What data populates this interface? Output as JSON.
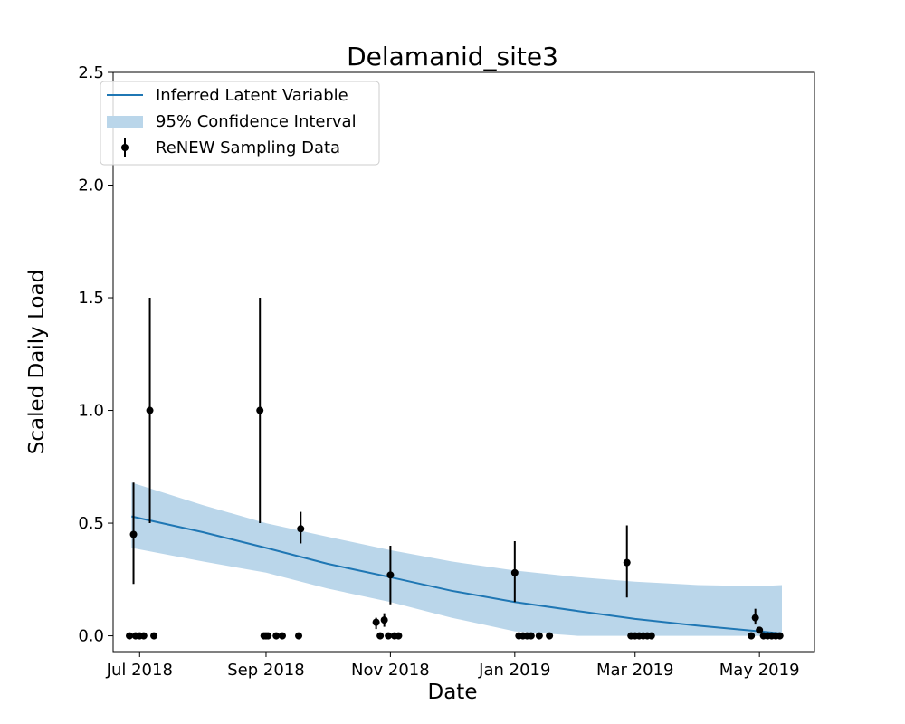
{
  "chart_data": {
    "type": "line",
    "title": "Delamanid_site3",
    "xlabel": "Date",
    "ylabel": "Scaled Daily Load",
    "xlim": [
      "2018-06-18",
      "2019-05-28"
    ],
    "ylim": [
      -0.07,
      2.5
    ],
    "x_ticks": [
      {
        "date": "2018-07-01",
        "label": "Jul 2018"
      },
      {
        "date": "2018-09-01",
        "label": "Sep 2018"
      },
      {
        "date": "2018-11-01",
        "label": "Nov 2018"
      },
      {
        "date": "2019-01-01",
        "label": "Jan 2019"
      },
      {
        "date": "2019-03-01",
        "label": "Mar 2019"
      },
      {
        "date": "2019-05-01",
        "label": "May 2019"
      }
    ],
    "y_ticks": [
      {
        "value": 0.0,
        "label": "0.0"
      },
      {
        "value": 0.5,
        "label": "0.5"
      },
      {
        "value": 1.0,
        "label": "1.0"
      },
      {
        "value": 1.5,
        "label": "1.5"
      },
      {
        "value": 2.0,
        "label": "2.0"
      },
      {
        "value": 2.5,
        "label": "2.5"
      }
    ],
    "grid": false,
    "legend_position": "top-left",
    "legend": {
      "latent": "Inferred Latent Variable",
      "ci": "95% Confidence Interval",
      "data": "ReNEW Sampling Data"
    },
    "colors": {
      "latent": "#1f77b4",
      "ci": "#bad6ea",
      "data": "#000000"
    },
    "series": [
      {
        "name": "Inferred Latent Variable",
        "kind": "line",
        "points": [
          {
            "x": "2018-06-27",
            "y": 0.53
          },
          {
            "x": "2018-08-01",
            "y": 0.46
          },
          {
            "x": "2018-09-01",
            "y": 0.39
          },
          {
            "x": "2018-10-01",
            "y": 0.32
          },
          {
            "x": "2018-11-01",
            "y": 0.26
          },
          {
            "x": "2018-12-01",
            "y": 0.2
          },
          {
            "x": "2019-01-01",
            "y": 0.15
          },
          {
            "x": "2019-02-01",
            "y": 0.11
          },
          {
            "x": "2019-03-01",
            "y": 0.075
          },
          {
            "x": "2019-04-01",
            "y": 0.045
          },
          {
            "x": "2019-05-01",
            "y": 0.02
          },
          {
            "x": "2019-05-12",
            "y": 0.01
          }
        ]
      },
      {
        "name": "95% Confidence Interval",
        "kind": "band",
        "points": [
          {
            "x": "2018-06-27",
            "low": 0.39,
            "high": 0.68
          },
          {
            "x": "2018-08-01",
            "low": 0.33,
            "high": 0.58
          },
          {
            "x": "2018-09-01",
            "low": 0.28,
            "high": 0.5
          },
          {
            "x": "2018-10-01",
            "low": 0.21,
            "high": 0.44
          },
          {
            "x": "2018-11-01",
            "low": 0.15,
            "high": 0.38
          },
          {
            "x": "2018-12-01",
            "low": 0.08,
            "high": 0.33
          },
          {
            "x": "2019-01-01",
            "low": 0.02,
            "high": 0.29
          },
          {
            "x": "2019-02-01",
            "low": 0.0,
            "high": 0.26
          },
          {
            "x": "2019-03-01",
            "low": 0.0,
            "high": 0.24
          },
          {
            "x": "2019-04-01",
            "low": 0.0,
            "high": 0.225
          },
          {
            "x": "2019-05-01",
            "low": 0.0,
            "high": 0.22
          },
          {
            "x": "2019-05-12",
            "low": 0.0,
            "high": 0.225
          }
        ]
      },
      {
        "name": "ReNEW Sampling Data",
        "kind": "errorbar",
        "points": [
          {
            "x": "2018-06-26",
            "y": 0.0
          },
          {
            "x": "2018-06-28",
            "y": 0.45,
            "low": 0.23,
            "high": 0.68
          },
          {
            "x": "2018-06-29",
            "y": 0.0
          },
          {
            "x": "2018-07-01",
            "y": 0.0
          },
          {
            "x": "2018-07-03",
            "y": 0.0
          },
          {
            "x": "2018-07-06",
            "y": 1.0,
            "low": 0.5,
            "high": 1.5
          },
          {
            "x": "2018-07-08",
            "y": 0.0
          },
          {
            "x": "2018-08-29",
            "y": 1.0,
            "low": 0.5,
            "high": 1.5
          },
          {
            "x": "2018-08-31",
            "y": 0.0
          },
          {
            "x": "2018-09-01",
            "y": 0.0
          },
          {
            "x": "2018-09-02",
            "y": 0.0
          },
          {
            "x": "2018-09-06",
            "y": 0.0
          },
          {
            "x": "2018-09-09",
            "y": 0.0
          },
          {
            "x": "2018-09-17",
            "y": 0.0
          },
          {
            "x": "2018-09-18",
            "y": 0.475,
            "low": 0.41,
            "high": 0.55
          },
          {
            "x": "2018-10-25",
            "y": 0.06,
            "low": 0.03,
            "high": 0.08
          },
          {
            "x": "2018-10-27",
            "y": 0.0
          },
          {
            "x": "2018-10-29",
            "y": 0.07,
            "low": 0.04,
            "high": 0.1
          },
          {
            "x": "2018-10-31",
            "y": 0.0
          },
          {
            "x": "2018-11-01",
            "y": 0.27,
            "low": 0.14,
            "high": 0.4
          },
          {
            "x": "2018-11-03",
            "y": 0.0
          },
          {
            "x": "2018-11-05",
            "y": 0.0
          },
          {
            "x": "2019-01-01",
            "y": 0.28,
            "low": 0.15,
            "high": 0.42
          },
          {
            "x": "2019-01-03",
            "y": 0.0
          },
          {
            "x": "2019-01-05",
            "y": 0.0
          },
          {
            "x": "2019-01-07",
            "y": 0.0
          },
          {
            "x": "2019-01-09",
            "y": 0.0
          },
          {
            "x": "2019-01-13",
            "y": 0.0
          },
          {
            "x": "2019-01-18",
            "y": 0.0
          },
          {
            "x": "2019-02-25",
            "y": 0.325,
            "low": 0.17,
            "high": 0.49
          },
          {
            "x": "2019-02-27",
            "y": 0.0
          },
          {
            "x": "2019-03-01",
            "y": 0.0
          },
          {
            "x": "2019-03-03",
            "y": 0.0
          },
          {
            "x": "2019-03-05",
            "y": 0.0
          },
          {
            "x": "2019-03-07",
            "y": 0.0
          },
          {
            "x": "2019-03-09",
            "y": 0.0
          },
          {
            "x": "2019-04-27",
            "y": 0.0
          },
          {
            "x": "2019-04-29",
            "y": 0.08,
            "low": 0.05,
            "high": 0.12
          },
          {
            "x": "2019-05-01",
            "y": 0.025
          },
          {
            "x": "2019-05-03",
            "y": 0.0
          },
          {
            "x": "2019-05-05",
            "y": 0.0
          },
          {
            "x": "2019-05-07",
            "y": 0.0
          },
          {
            "x": "2019-05-09",
            "y": 0.0
          },
          {
            "x": "2019-05-11",
            "y": 0.0
          }
        ]
      }
    ]
  }
}
